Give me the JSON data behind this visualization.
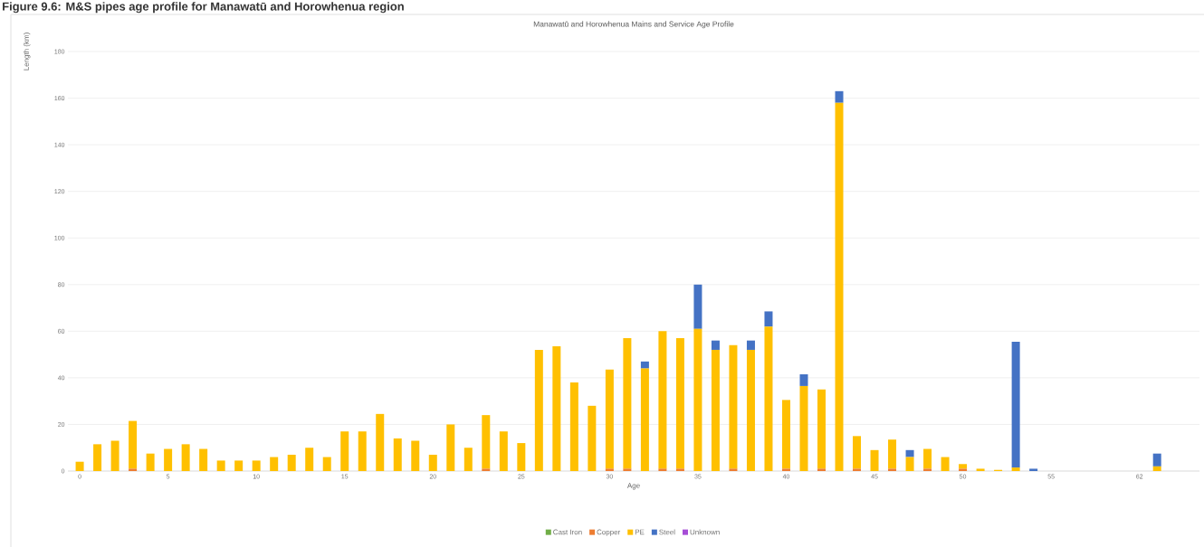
{
  "chart_data": {
    "type": "bar",
    "stacked": true,
    "title": "Figure 9.6: M&S pipes age profile for Manawatū and Horowhenua region",
    "subtitle": "Manawatū and Horowhenua  Mains and Service Age Profile",
    "xlabel": "Age",
    "ylabel": "Length (km)",
    "categories": [
      "0",
      null,
      null,
      null,
      null,
      "5",
      null,
      null,
      null,
      null,
      "10",
      null,
      null,
      null,
      null,
      "15",
      null,
      null,
      null,
      null,
      "20",
      null,
      null,
      null,
      null,
      "25",
      null,
      null,
      null,
      null,
      "30",
      null,
      null,
      null,
      null,
      "35",
      null,
      null,
      null,
      null,
      "40",
      null,
      null,
      null,
      null,
      "45",
      null,
      null,
      null,
      null,
      "50",
      null,
      null,
      null,
      null,
      "55",
      null,
      null,
      null,
      null,
      "62",
      null
    ],
    "series": [
      {
        "name": "Cast Iron",
        "color": "#70ad47",
        "values": [
          0,
          0,
          0,
          0,
          0,
          0,
          0,
          0,
          0,
          0,
          0,
          0,
          0,
          0,
          0,
          0,
          0,
          0,
          0,
          0,
          0,
          0,
          0,
          0,
          0,
          0,
          0,
          0,
          0,
          0,
          0,
          0,
          0,
          0,
          0,
          0,
          0,
          0,
          0,
          0,
          0,
          0,
          0,
          0,
          0,
          0,
          0,
          0,
          0,
          0,
          0,
          0,
          0,
          0,
          0,
          0,
          0,
          0,
          0,
          0,
          0,
          0
        ]
      },
      {
        "name": "Copper",
        "color": "#ed7d31",
        "values": [
          0,
          0,
          0,
          1,
          0,
          0,
          0,
          0,
          0,
          0,
          0,
          0,
          0,
          0,
          0,
          0,
          0,
          0,
          0,
          0,
          0,
          0,
          0,
          1,
          0,
          0,
          0,
          0,
          0,
          0,
          1,
          1,
          0,
          1,
          1,
          0,
          0,
          1,
          0,
          0,
          1,
          0,
          1,
          0,
          1,
          0,
          1,
          0,
          1,
          0,
          1,
          0,
          0,
          0,
          0,
          0,
          0,
          0,
          0,
          0,
          0,
          0
        ]
      },
      {
        "name": "PE",
        "color": "#ffc000",
        "values": [
          4,
          11.5,
          13,
          20.5,
          7.5,
          9.5,
          11.5,
          9.5,
          4.5,
          4.5,
          4.5,
          6,
          7,
          10,
          6,
          17,
          17,
          24.5,
          14,
          13,
          7,
          20,
          10,
          23,
          17,
          12,
          52,
          53.5,
          38,
          28,
          42.5,
          56,
          44,
          59,
          56,
          61,
          52,
          53,
          52,
          62,
          29.5,
          36.5,
          34,
          158,
          14,
          9,
          12.5,
          6,
          8.5,
          6,
          2,
          1,
          0.5,
          1.5,
          0,
          0,
          0,
          0,
          0,
          0,
          0,
          2
        ]
      },
      {
        "name": "Steel",
        "color": "#4472c4",
        "values": [
          0,
          0,
          0,
          0,
          0,
          0,
          0,
          0,
          0,
          0,
          0,
          0,
          0,
          0,
          0,
          0,
          0,
          0,
          0,
          0,
          0,
          0,
          0,
          0,
          0,
          0,
          0,
          0,
          0,
          0,
          0,
          0,
          3,
          0,
          0,
          19,
          4,
          0,
          4,
          6.5,
          0,
          5,
          0,
          5,
          0,
          0,
          0,
          3,
          0,
          0,
          0,
          0,
          0,
          54,
          1,
          0,
          0,
          0,
          0,
          0,
          0,
          5.5
        ]
      },
      {
        "name": "Unknown",
        "color": "#a64dd6",
        "values": [
          0,
          0,
          0,
          0,
          0,
          0,
          0,
          0,
          0,
          0,
          0,
          0,
          0,
          0,
          0,
          0,
          0,
          0,
          0,
          0,
          0,
          0,
          0,
          0,
          0,
          0,
          0,
          0,
          0,
          0,
          0,
          0,
          0,
          0,
          0,
          0,
          0,
          0,
          0,
          0,
          0,
          0,
          0,
          0,
          0,
          0,
          0,
          0,
          0,
          0,
          0,
          0,
          0,
          0,
          0,
          0,
          0,
          0,
          0,
          0,
          0,
          0
        ]
      }
    ],
    "ylim": [
      0,
      180
    ],
    "yticks": [
      0,
      20,
      40,
      60,
      80,
      100,
      120,
      140,
      160,
      180
    ],
    "grid": "y",
    "legend": "bottom"
  }
}
